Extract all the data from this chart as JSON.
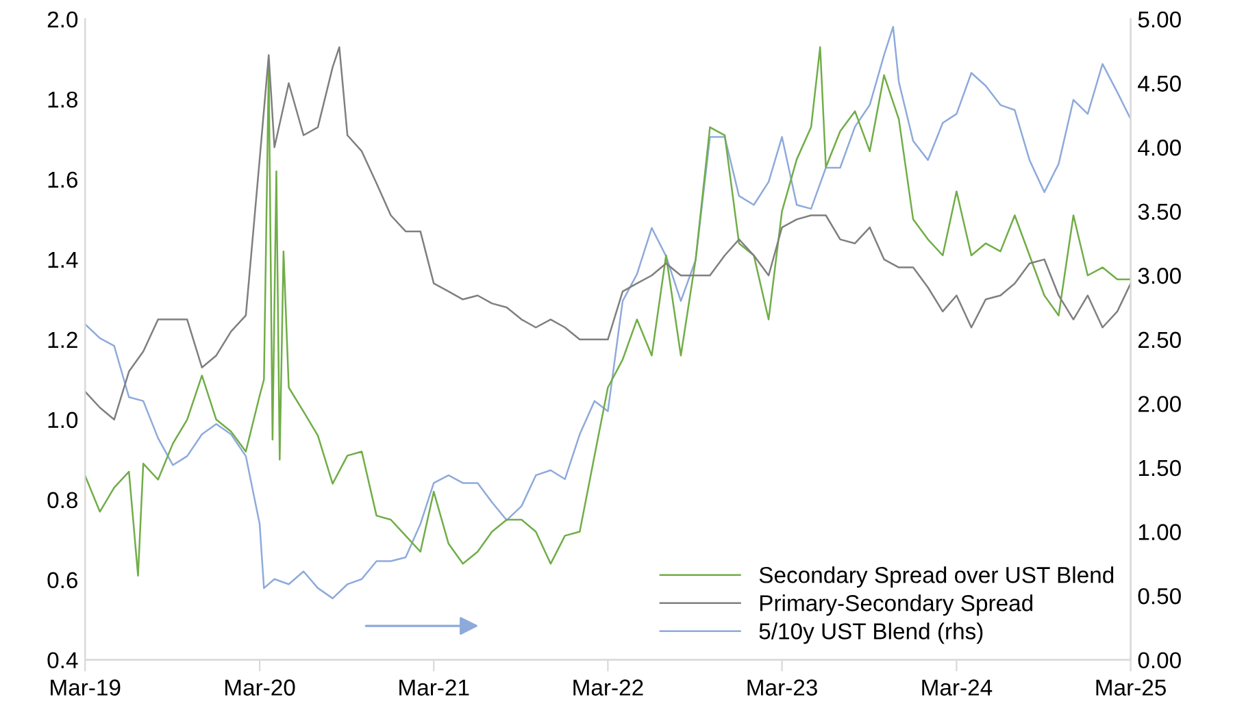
{
  "chart_data": {
    "type": "line",
    "xlim": [
      "2019-03",
      "2025-03"
    ],
    "xticks": [
      {
        "value": "2019-03",
        "label": "Mar-19"
      },
      {
        "value": "2020-03",
        "label": "Mar-20"
      },
      {
        "value": "2021-03",
        "label": "Mar-21"
      },
      {
        "value": "2022-03",
        "label": "Mar-22"
      },
      {
        "value": "2023-03",
        "label": "Mar-23"
      },
      {
        "value": "2024-03",
        "label": "Mar-24"
      },
      {
        "value": "2025-03",
        "label": "Mar-25"
      }
    ],
    "ylim": [
      0.4,
      2.0
    ],
    "yticks": [
      0.4,
      0.6,
      0.8,
      {
        "value": 1,
        "label": "1.0"
      },
      1.2,
      1.4,
      1.6,
      1.8,
      {
        "value": 2,
        "label": "2.0"
      }
    ],
    "y2lim": [
      0,
      5
    ],
    "y2ticks": [
      {
        "value": 0,
        "label": "0.00"
      },
      {
        "value": 0.5,
        "label": "0.50"
      },
      {
        "value": 1,
        "label": "1.00"
      },
      {
        "value": 1.5,
        "label": "1.50"
      },
      {
        "value": 2,
        "label": "2.00"
      },
      {
        "value": 2.5,
        "label": "2.50"
      },
      {
        "value": 3,
        "label": "3.00"
      },
      {
        "value": 3.5,
        "label": "3.50"
      },
      {
        "value": 4,
        "label": "4.00"
      },
      {
        "value": 4.5,
        "label": "4.50"
      },
      {
        "value": 5,
        "label": "5.00"
      }
    ],
    "grid": false,
    "legend": "bottom right",
    "marker": "none",
    "line_style": "solid",
    "series": [
      {
        "name": "Secondary Spread over UST Blend",
        "color": "#70ad47",
        "x": [
          "2019-03",
          "2019-04",
          "2019-05",
          "2019-06",
          "2019-06-20",
          "2019-07",
          "2019-08",
          "2019-09",
          "2019-10",
          "2019-11",
          "2019-12",
          "2020-01",
          "2020-02",
          "2020-03",
          "2020-03-10",
          "2020-03-20",
          "2020-03-28",
          "2020-04-05",
          "2020-04-12",
          "2020-04-20",
          "2020-05",
          "2020-06",
          "2020-07",
          "2020-08",
          "2020-09",
          "2020-10",
          "2020-11",
          "2020-12",
          "2021-01",
          "2021-02",
          "2021-03",
          "2021-04",
          "2021-05",
          "2021-06",
          "2021-07",
          "2021-08",
          "2021-09",
          "2021-10",
          "2021-11",
          "2021-12",
          "2022-01",
          "2022-02",
          "2022-03",
          "2022-04",
          "2022-05",
          "2022-06",
          "2022-07",
          "2022-08",
          "2022-09",
          "2022-10",
          "2022-11",
          "2022-12",
          "2023-01",
          "2023-02",
          "2023-03",
          "2023-04",
          "2023-05",
          "2023-05-20",
          "2023-06",
          "2023-07",
          "2023-08",
          "2023-09",
          "2023-10",
          "2023-11",
          "2023-12",
          "2024-01",
          "2024-02",
          "2024-03",
          "2024-04",
          "2024-05",
          "2024-06",
          "2024-07",
          "2024-08",
          "2024-09",
          "2024-10",
          "2024-11",
          "2024-12",
          "2025-01",
          "2025-02",
          "2025-03"
        ],
        "values": [
          0.86,
          0.77,
          0.83,
          0.87,
          0.61,
          0.89,
          0.85,
          0.94,
          1.0,
          1.11,
          1.0,
          0.97,
          0.92,
          1.06,
          1.1,
          1.88,
          0.95,
          1.62,
          0.9,
          1.42,
          1.08,
          1.02,
          0.96,
          0.84,
          0.91,
          0.92,
          0.76,
          0.75,
          0.71,
          0.67,
          0.82,
          0.69,
          0.64,
          0.67,
          0.72,
          0.75,
          0.75,
          0.72,
          0.64,
          0.71,
          0.72,
          0.91,
          1.08,
          1.15,
          1.25,
          1.16,
          1.41,
          1.16,
          1.4,
          1.73,
          1.71,
          1.44,
          1.41,
          1.25,
          1.52,
          1.65,
          1.73,
          1.93,
          1.63,
          1.72,
          1.77,
          1.67,
          1.86,
          1.75,
          1.5,
          1.45,
          1.41,
          1.57,
          1.41,
          1.44,
          1.42,
          1.51,
          1.41,
          1.31,
          1.26,
          1.51,
          1.36,
          1.38,
          1.35,
          1.35
        ]
      },
      {
        "name": "Primary-Secondary Spread",
        "color": "#7f7f7f",
        "x": [
          "2019-03",
          "2019-04",
          "2019-05",
          "2019-06",
          "2019-07",
          "2019-08",
          "2019-09",
          "2019-10",
          "2019-11",
          "2019-12",
          "2020-01",
          "2020-02",
          "2020-03",
          "2020-03-20",
          "2020-04",
          "2020-05",
          "2020-06",
          "2020-07",
          "2020-08",
          "2020-08-15",
          "2020-09",
          "2020-10",
          "2020-11",
          "2020-12",
          "2021-01",
          "2021-02",
          "2021-03",
          "2021-04",
          "2021-05",
          "2021-06",
          "2021-07",
          "2021-08",
          "2021-09",
          "2021-10",
          "2021-11",
          "2021-12",
          "2022-01",
          "2022-02",
          "2022-03",
          "2022-04",
          "2022-05",
          "2022-06",
          "2022-07",
          "2022-08",
          "2022-09",
          "2022-10",
          "2022-11",
          "2022-12",
          "2023-01",
          "2023-02",
          "2023-03",
          "2023-04",
          "2023-05",
          "2023-06",
          "2023-07",
          "2023-08",
          "2023-09",
          "2023-10",
          "2023-11",
          "2023-12",
          "2024-01",
          "2024-02",
          "2024-03",
          "2024-04",
          "2024-05",
          "2024-06",
          "2024-07",
          "2024-08",
          "2024-09",
          "2024-10",
          "2024-11",
          "2024-12",
          "2025-01",
          "2025-02",
          "2025-03"
        ],
        "values": [
          1.07,
          1.03,
          1.0,
          1.12,
          1.17,
          1.25,
          1.25,
          1.25,
          1.13,
          1.16,
          1.22,
          1.26,
          1.65,
          1.91,
          1.68,
          1.84,
          1.71,
          1.73,
          1.88,
          1.93,
          1.71,
          1.67,
          1.59,
          1.51,
          1.47,
          1.47,
          1.34,
          1.32,
          1.3,
          1.31,
          1.29,
          1.28,
          1.25,
          1.23,
          1.25,
          1.23,
          1.2,
          1.2,
          1.2,
          1.32,
          1.34,
          1.36,
          1.39,
          1.36,
          1.36,
          1.36,
          1.41,
          1.45,
          1.41,
          1.36,
          1.48,
          1.5,
          1.51,
          1.51,
          1.45,
          1.44,
          1.48,
          1.4,
          1.38,
          1.38,
          1.33,
          1.27,
          1.31,
          1.23,
          1.3,
          1.31,
          1.34,
          1.39,
          1.4,
          1.31,
          1.25,
          1.31,
          1.23,
          1.27,
          1.34
        ]
      },
      {
        "name": "5/10y UST Blend (rhs)",
        "color": "#8eaadb",
        "axis": "y2",
        "x": [
          "2019-03",
          "2019-04",
          "2019-05",
          "2019-06",
          "2019-07",
          "2019-08",
          "2019-09",
          "2019-10",
          "2019-11",
          "2019-12",
          "2020-01",
          "2020-02",
          "2020-03",
          "2020-03-10",
          "2020-04",
          "2020-05",
          "2020-06",
          "2020-07",
          "2020-08",
          "2020-09",
          "2020-10",
          "2020-11",
          "2020-12",
          "2021-01",
          "2021-02",
          "2021-03",
          "2021-04",
          "2021-05",
          "2021-06",
          "2021-07",
          "2021-08",
          "2021-09",
          "2021-10",
          "2021-11",
          "2021-12",
          "2022-01",
          "2022-02",
          "2022-03",
          "2022-04",
          "2022-05",
          "2022-06",
          "2022-07",
          "2022-08",
          "2022-09",
          "2022-10",
          "2022-11",
          "2022-12",
          "2023-01",
          "2023-02",
          "2023-03",
          "2023-04",
          "2023-05",
          "2023-06",
          "2023-07",
          "2023-08",
          "2023-09",
          "2023-10",
          "2023-10-20",
          "2023-11",
          "2023-12",
          "2024-01",
          "2024-02",
          "2024-03",
          "2024-04",
          "2024-05",
          "2024-06",
          "2024-07",
          "2024-08",
          "2024-09",
          "2024-10",
          "2024-11",
          "2024-12",
          "2025-01",
          "2025-02",
          "2025-03"
        ],
        "values": [
          2.62,
          2.51,
          2.45,
          2.05,
          2.02,
          1.73,
          1.52,
          1.59,
          1.76,
          1.84,
          1.76,
          1.59,
          1.06,
          0.56,
          0.63,
          0.59,
          0.69,
          0.56,
          0.48,
          0.59,
          0.63,
          0.77,
          0.77,
          0.8,
          1.06,
          1.38,
          1.44,
          1.38,
          1.38,
          1.23,
          1.09,
          1.2,
          1.44,
          1.48,
          1.41,
          1.76,
          2.02,
          1.94,
          2.8,
          3.01,
          3.37,
          3.15,
          2.8,
          3.12,
          4.08,
          4.08,
          3.62,
          3.55,
          3.73,
          4.08,
          3.55,
          3.52,
          3.84,
          3.84,
          4.16,
          4.33,
          4.72,
          4.94,
          4.51,
          4.05,
          3.9,
          4.19,
          4.26,
          4.58,
          4.48,
          4.33,
          4.29,
          3.9,
          3.65,
          3.87,
          4.37,
          4.26,
          4.65,
          4.43,
          4.22
        ]
      }
    ]
  }
}
